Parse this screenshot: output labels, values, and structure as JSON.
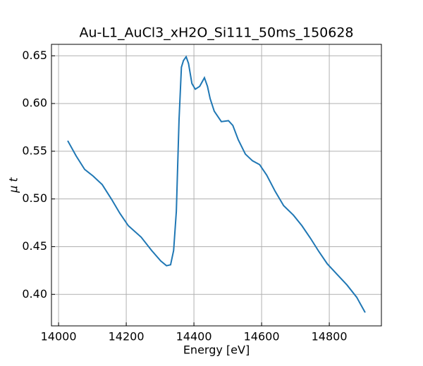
{
  "chart_data": {
    "type": "line",
    "title": "Au-L1_AuCl3_xH2O_Si111_50ms_150628",
    "x_label": "Energy [eV]",
    "y_label": "μ t",
    "x": [
      14027,
      14052,
      14077,
      14102,
      14129,
      14156,
      14181,
      14206,
      14244,
      14275,
      14302,
      14319,
      14331,
      14340,
      14348,
      14356,
      14363,
      14369,
      14377,
      14384,
      14394,
      14404,
      14417,
      14431,
      14440,
      14448,
      14460,
      14481,
      14502,
      14515,
      14531,
      14552,
      14573,
      14594,
      14615,
      14640,
      14665,
      14694,
      14719,
      14744,
      14769,
      14794,
      14823,
      14852,
      14881,
      14906
    ],
    "series": [
      {
        "color": "#1f77b4",
        "values": [
          0.561,
          0.545,
          0.531,
          0.524,
          0.515,
          0.5,
          0.485,
          0.472,
          0.46,
          0.446,
          0.435,
          0.43,
          0.431,
          0.446,
          0.487,
          0.583,
          0.638,
          0.645,
          0.649,
          0.642,
          0.621,
          0.615,
          0.618,
          0.627,
          0.618,
          0.605,
          0.592,
          0.581,
          0.582,
          0.577,
          0.562,
          0.547,
          0.54,
          0.536,
          0.525,
          0.508,
          0.493,
          0.483,
          0.472,
          0.459,
          0.445,
          0.432,
          0.421,
          0.41,
          0.397,
          0.381
        ]
      }
    ],
    "xlim": [
      13979,
      14954
    ],
    "ylim": [
      0.367,
      0.662
    ],
    "xticks": [
      14000,
      14200,
      14400,
      14600,
      14800
    ],
    "yticks": [
      {
        "value": 0.4,
        "label": "0.40"
      },
      0.45,
      {
        "value": 0.5,
        "label": "0.50"
      },
      0.55,
      {
        "value": 0.6,
        "label": "0.60"
      },
      0.65
    ],
    "grid": true
  }
}
